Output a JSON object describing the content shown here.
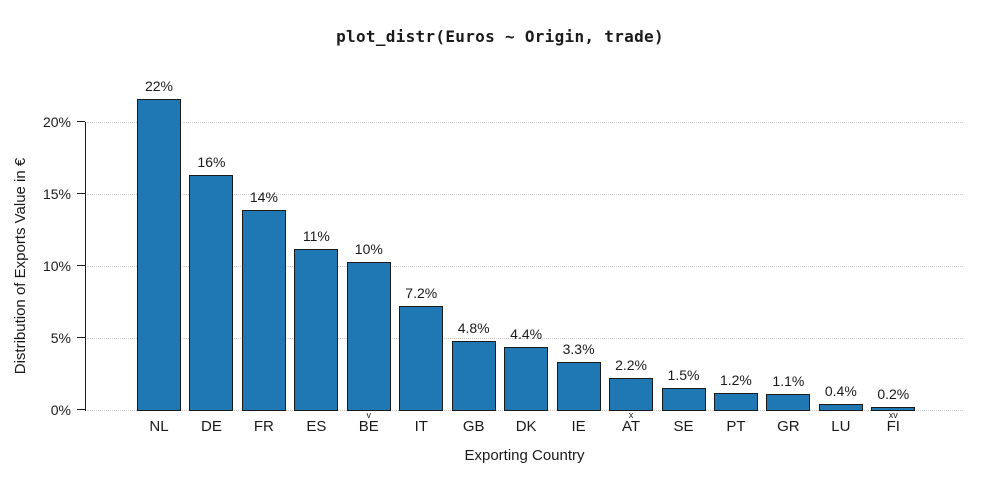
{
  "chart_data": {
    "type": "bar",
    "title": "plot_distr(Euros ~ Origin, trade)",
    "xlabel": "Exporting Country",
    "ylabel": "Distribution of Exports Value in €",
    "categories": [
      "NL",
      "DE",
      "FR",
      "ES",
      "BE",
      "IT",
      "GB",
      "DK",
      "IE",
      "AT",
      "SE",
      "PT",
      "GR",
      "LU",
      "FI"
    ],
    "values_percent": [
      21.6,
      16.3,
      13.9,
      11.2,
      10.3,
      7.2,
      4.8,
      4.4,
      3.3,
      2.2,
      1.5,
      1.2,
      1.1,
      0.4,
      0.2
    ],
    "bar_labels": [
      "22%",
      "16%",
      "14%",
      "11%",
      "10%",
      "7.2%",
      "4.8%",
      "4.4%",
      "3.3%",
      "2.2%",
      "1.5%",
      "1.2%",
      "1.1%",
      "0.4%",
      "0.2%"
    ],
    "category_marks": [
      "",
      "",
      "",
      "",
      "v",
      "",
      "",
      "",
      "",
      "x",
      "",
      "",
      "",
      "",
      "xv"
    ],
    "y_ticks": [
      {
        "value": 0,
        "label": "0%"
      },
      {
        "value": 5,
        "label": "5%"
      },
      {
        "value": 10,
        "label": "10%"
      },
      {
        "value": 15,
        "label": "15%"
      },
      {
        "value": 20,
        "label": "20%"
      }
    ],
    "ylim": [
      0,
      22.5
    ],
    "grid": "horizontal-dotted",
    "legend": "none",
    "colors": {
      "bar_fill": "#1f77b4",
      "bar_edge": "#1a1a1a",
      "gridline": "#c9c9c9",
      "axis": "#1a1a1a",
      "text": "#1a1a1a",
      "background": "#ffffff"
    }
  }
}
